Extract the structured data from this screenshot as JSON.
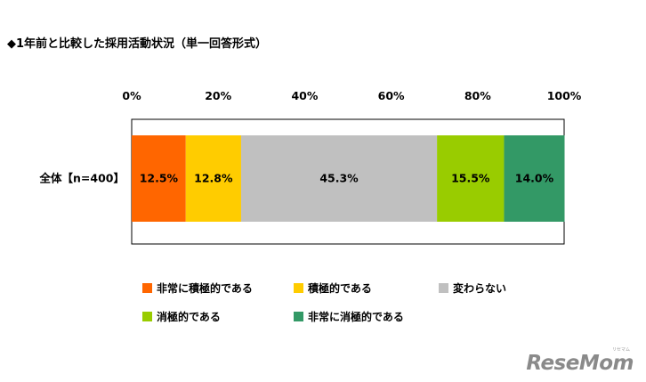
{
  "title": "◆1年前と比較した採用活動状況（単一回答形式）",
  "chart_data": {
    "type": "bar",
    "orientation": "horizontal",
    "stacked": true,
    "percent_axis": true,
    "categories": [
      "全体【n=400】"
    ],
    "x_ticks": [
      "0%",
      "20%",
      "40%",
      "60%",
      "80%",
      "100%"
    ],
    "xlim": [
      0,
      100
    ],
    "series": [
      {
        "name": "非常に積極的である",
        "values": [
          12.5
        ],
        "label": "12.5%",
        "color": "#ff6600"
      },
      {
        "name": "積極的である",
        "values": [
          12.8
        ],
        "label": "12.8%",
        "color": "#ffcc00"
      },
      {
        "name": "変わらない",
        "values": [
          45.3
        ],
        "label": "45.3%",
        "color": "#c0c0c0"
      },
      {
        "name": "消極的である",
        "values": [
          15.5
        ],
        "label": "15.5%",
        "color": "#99cc00"
      },
      {
        "name": "非常に消極的である",
        "values": [
          14.0
        ],
        "label": "14.0%",
        "color": "#339966"
      }
    ],
    "legend_position": "bottom",
    "grid": false
  },
  "watermark": {
    "text": "ReseMom",
    "kana": "リセマム"
  }
}
